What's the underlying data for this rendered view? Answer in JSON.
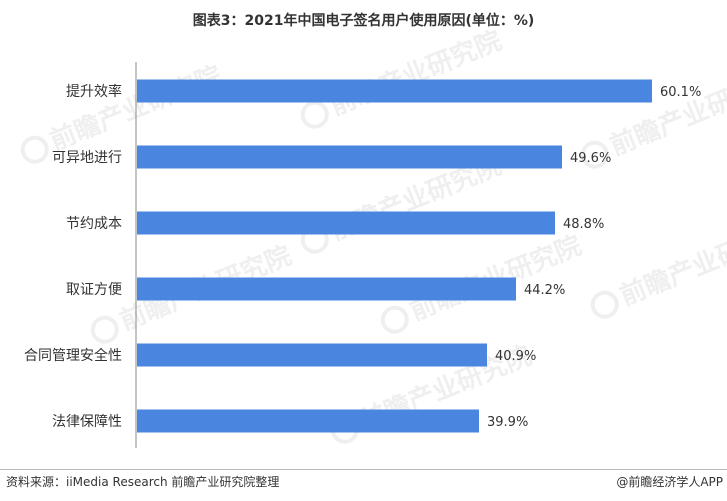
{
  "chart_data": {
    "type": "bar",
    "orientation": "horizontal",
    "title": "图表3：2021年中国电子签名用户使用原因(单位：%)",
    "categories": [
      "提升效率",
      "可异地进行",
      "节约成本",
      "取证方便",
      "合同管理安全性",
      "法律保障性"
    ],
    "values": [
      60.1,
      49.6,
      48.8,
      44.2,
      40.9,
      39.9
    ],
    "value_labels": [
      "60.1%",
      "49.6%",
      "48.8%",
      "44.2%",
      "40.9%",
      "39.9%"
    ],
    "xlim": [
      0,
      60.1
    ],
    "bar_color": "#4a86e0",
    "axis_color": "#8a8a8a",
    "grid": false,
    "legend": "none"
  },
  "footer": {
    "source": "资料来源：iiMedia Research 前瞻产业研究院整理",
    "brand": "@前瞻经济学人APP"
  },
  "watermark": {
    "text": "前瞻产业研究院"
  }
}
